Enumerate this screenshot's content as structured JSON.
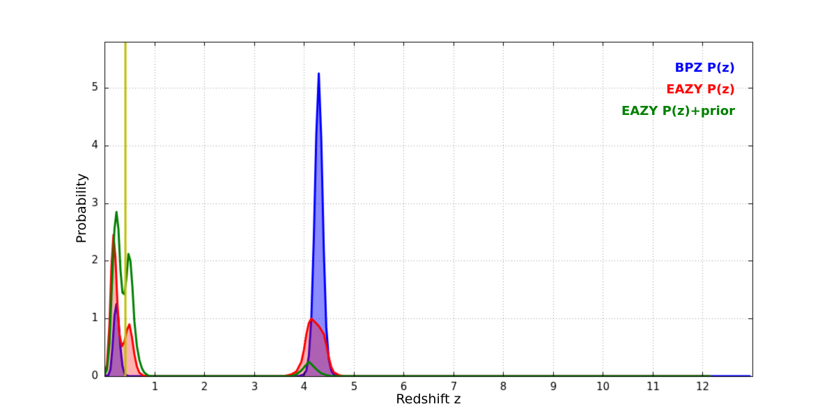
{
  "figure": {
    "background": "#ffffff",
    "xlabel": "Redshift z",
    "ylabel": "Probability"
  },
  "legend": {
    "position": "upper right",
    "items": [
      {
        "label": "BPZ P(z)",
        "color": "#0000ff"
      },
      {
        "label": "EAZY P(z)",
        "color": "#ff0000"
      },
      {
        "label": "EAZY P(z)+prior",
        "color": "#008000"
      }
    ]
  },
  "chart_data": {
    "type": "line",
    "title": "",
    "xlabel": "Redshift z",
    "ylabel": "Probability",
    "xlim": [
      0,
      13
    ],
    "ylim": [
      0,
      5.8
    ],
    "xticks": [
      1,
      2,
      3,
      4,
      5,
      6,
      7,
      8,
      9,
      10,
      11,
      12
    ],
    "yticks": [
      0,
      1,
      2,
      3,
      4,
      5
    ],
    "grid": true,
    "grid_style": "dotted",
    "grid_color": "#999999",
    "frame_color": "#000000",
    "vline": {
      "name": "spec-z-marker",
      "x": 0.42,
      "color": "#bfbf00",
      "width": 3
    },
    "series": [
      {
        "name": "BPZ P(z)",
        "color": "#0000ff",
        "fill": true,
        "fill_alpha": 0.45,
        "line_width": 3,
        "points": [
          [
            0,
            0
          ],
          [
            0.08,
            0.02
          ],
          [
            0.12,
            0.12
          ],
          [
            0.16,
            0.5
          ],
          [
            0.2,
            1.05
          ],
          [
            0.24,
            1.25
          ],
          [
            0.28,
            1.0
          ],
          [
            0.32,
            0.5
          ],
          [
            0.36,
            0.18
          ],
          [
            0.4,
            0.05
          ],
          [
            0.45,
            0.01
          ],
          [
            0.5,
            0
          ],
          [
            3.9,
            0
          ],
          [
            4.0,
            0.03
          ],
          [
            4.05,
            0.1
          ],
          [
            4.1,
            0.35
          ],
          [
            4.15,
            1.0
          ],
          [
            4.2,
            2.4
          ],
          [
            4.25,
            4.2
          ],
          [
            4.3,
            5.25
          ],
          [
            4.35,
            4.1
          ],
          [
            4.4,
            2.2
          ],
          [
            4.45,
            0.85
          ],
          [
            4.5,
            0.3
          ],
          [
            4.55,
            0.1
          ],
          [
            4.6,
            0.03
          ],
          [
            4.7,
            0
          ],
          [
            12.95,
            0
          ]
        ]
      },
      {
        "name": "EAZY P(z)",
        "color": "#ff0000",
        "fill": true,
        "fill_alpha": 0.3,
        "line_width": 3,
        "points": [
          [
            0,
            0.02
          ],
          [
            0.05,
            0.2
          ],
          [
            0.1,
            0.9
          ],
          [
            0.14,
            1.9
          ],
          [
            0.18,
            2.45
          ],
          [
            0.22,
            2.05
          ],
          [
            0.26,
            1.25
          ],
          [
            0.3,
            0.72
          ],
          [
            0.35,
            0.52
          ],
          [
            0.4,
            0.6
          ],
          [
            0.45,
            0.8
          ],
          [
            0.5,
            0.9
          ],
          [
            0.55,
            0.68
          ],
          [
            0.6,
            0.38
          ],
          [
            0.65,
            0.17
          ],
          [
            0.7,
            0.06
          ],
          [
            0.78,
            0.01
          ],
          [
            0.85,
            0
          ],
          [
            3.6,
            0
          ],
          [
            3.75,
            0.03
          ],
          [
            3.85,
            0.08
          ],
          [
            3.95,
            0.25
          ],
          [
            4.0,
            0.45
          ],
          [
            4.05,
            0.72
          ],
          [
            4.1,
            0.92
          ],
          [
            4.15,
            1.0
          ],
          [
            4.2,
            0.96
          ],
          [
            4.3,
            0.87
          ],
          [
            4.4,
            0.73
          ],
          [
            4.45,
            0.55
          ],
          [
            4.5,
            0.33
          ],
          [
            4.55,
            0.16
          ],
          [
            4.6,
            0.07
          ],
          [
            4.7,
            0.02
          ],
          [
            4.8,
            0
          ],
          [
            12.15,
            0
          ]
        ]
      },
      {
        "name": "EAZY P(z)+prior",
        "color": "#008000",
        "fill": false,
        "fill_alpha": 0,
        "line_width": 3,
        "points": [
          [
            0,
            0.02
          ],
          [
            0.05,
            0.12
          ],
          [
            0.1,
            0.55
          ],
          [
            0.15,
            1.6
          ],
          [
            0.2,
            2.55
          ],
          [
            0.24,
            2.85
          ],
          [
            0.28,
            2.55
          ],
          [
            0.32,
            1.85
          ],
          [
            0.36,
            1.45
          ],
          [
            0.4,
            1.42
          ],
          [
            0.44,
            1.7
          ],
          [
            0.48,
            2.12
          ],
          [
            0.52,
            2.0
          ],
          [
            0.56,
            1.55
          ],
          [
            0.6,
            0.95
          ],
          [
            0.65,
            0.52
          ],
          [
            0.7,
            0.28
          ],
          [
            0.75,
            0.14
          ],
          [
            0.8,
            0.06
          ],
          [
            0.88,
            0.01
          ],
          [
            0.95,
            0
          ],
          [
            3.75,
            0
          ],
          [
            3.85,
            0.03
          ],
          [
            3.95,
            0.1
          ],
          [
            4.05,
            0.2
          ],
          [
            4.1,
            0.25
          ],
          [
            4.15,
            0.21
          ],
          [
            4.25,
            0.12
          ],
          [
            4.35,
            0.05
          ],
          [
            4.45,
            0.02
          ],
          [
            4.55,
            0
          ],
          [
            12.15,
            0
          ]
        ]
      }
    ],
    "legend_position": "upper right"
  }
}
